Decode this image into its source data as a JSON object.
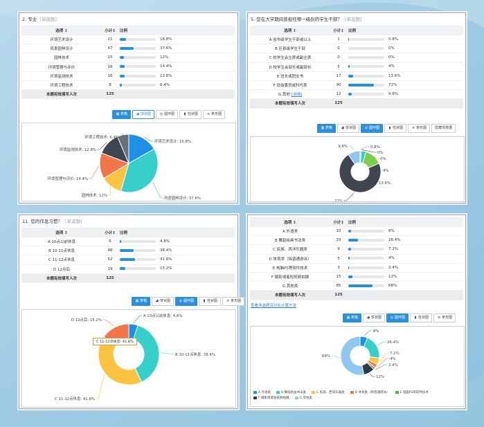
{
  "common": {
    "col_option": "选项 ↕",
    "col_count": "小计↕",
    "col_ratio": "比例",
    "total_label": "本题有效填写人次",
    "btn_table": "表格",
    "btn_pie": "饼状图",
    "btn_ring": "圆环图",
    "btn_column": "柱状图",
    "btn_bar": "条形图",
    "btn_hide": "隐藏零数据",
    "type_tag": "[单选题]"
  },
  "q2": {
    "title": "2. 专业",
    "total": "125",
    "rows": [
      {
        "opt": "环境艺术设计",
        "cnt": "21",
        "pct": "16.8%",
        "v": 16.8
      },
      {
        "opt": "风景园林设计",
        "cnt": "47",
        "pct": "37.6%",
        "v": 37.6
      },
      {
        "opt": "园林技术",
        "cnt": "15",
        "pct": "12%",
        "v": 12
      },
      {
        "opt": "环境管理与评价",
        "cnt": "18",
        "pct": "14.4%",
        "v": 14.4
      },
      {
        "opt": "环境监测技术",
        "cnt": "16",
        "pct": "12.8%",
        "v": 12.8
      },
      {
        "opt": "环境工程技术",
        "cnt": "8",
        "pct": "6.4%",
        "v": 6.4
      }
    ]
  },
  "q5": {
    "title": "5. 您在大学期间曾担任哪一级别的学生干部？",
    "total": "125",
    "g_other_link": "[详细]",
    "rows": [
      {
        "opt": "A 省市级学生干部或以上",
        "cnt": "1",
        "pct": "0.8%",
        "v": 0.8
      },
      {
        "opt": "B 区县级学生干部",
        "cnt": "0",
        "pct": "0%",
        "v": 0
      },
      {
        "opt": "C 校学生会主席或副主席",
        "cnt": "0",
        "pct": "0%",
        "v": 0
      },
      {
        "opt": "D 校学生会部长或副部长",
        "cnt": "5",
        "pct": "4%",
        "v": 4
      },
      {
        "opt": "E 班长或团支书",
        "cnt": "17",
        "pct": "13.6%",
        "v": 13.6
      },
      {
        "opt": "F 班级委员或科代表",
        "cnt": "90",
        "pct": "72%",
        "v": 72
      },
      {
        "opt": "G 其他",
        "cnt": "12",
        "pct": "9.6%",
        "v": 9.6
      }
    ]
  },
  "q11": {
    "title": "11. 您的作息习惯？",
    "total": "125",
    "tooltip": "C 11-12点休息: 41.6%",
    "rows": [
      {
        "opt": "A 10点以前休息",
        "cnt": "6",
        "pct": "4.8%",
        "v": 4.8
      },
      {
        "opt": "B 10-11点休息",
        "cnt": "48",
        "pct": "38.4%",
        "v": 38.4
      },
      {
        "opt": "C 11-12点休息",
        "cnt": "52",
        "pct": "41.6%",
        "v": 41.6
      },
      {
        "opt": "D 12点后",
        "cnt": "19",
        "pct": "15.2%",
        "v": 15.2
      }
    ]
  },
  "q4": {
    "total": "125",
    "link_text": "查看多选题百分比计算方法",
    "rows": [
      {
        "opt": "A 外语类",
        "cnt": "10",
        "pct": "8%",
        "v": 8
      },
      {
        "opt": "B 舞蹈绘画书法类",
        "cnt": "33",
        "pct": "26.4%",
        "v": 26.4
      },
      {
        "opt": "C 民族、西洋乐器类",
        "cnt": "9",
        "pct": "7.2%",
        "v": 7.2
      },
      {
        "opt": "D 体育类（除普通游泳）",
        "cnt": "5",
        "pct": "4%",
        "v": 4
      },
      {
        "opt": "E 电脑PS等软件技术",
        "cnt": "3",
        "pct": "2.4%",
        "v": 2.4
      },
      {
        "opt": "F 摄影或者短视频拍摄",
        "cnt": "15",
        "pct": "12%",
        "v": 12
      },
      {
        "opt": "G 其他类",
        "cnt": "85",
        "pct": "68%",
        "v": 68
      }
    ],
    "legend": [
      "A 外语类",
      "B 舞蹈绘画书法类",
      "C 民族、西洋乐器类",
      "D 体育类（除普通游泳）",
      "E 电脑PS等软件技术",
      "F 摄影或者短视频拍摄",
      "G 其他类"
    ]
  },
  "chart_data": [
    {
      "type": "pie",
      "title": "",
      "categories": [
        "环境艺术设计",
        "风景园林设计",
        "园林技术",
        "环境管理与评价",
        "环境监测技术",
        "环境工程技术"
      ],
      "values": [
        16.8,
        37.6,
        12,
        14.4,
        12.8,
        6.4
      ],
      "labels": [
        "环境艺术设计: 16.8%",
        "风景园林设计: 37.6%",
        "园林技术: 12%",
        "环境管理与评价: 14.4%",
        "环境监测技术: 12.8%",
        "环境工程技术: 6.4%"
      ],
      "colors": [
        "#1e90e6",
        "#36cfc9",
        "#fbc33f",
        "#f4754a",
        "#3f4650",
        "#6b7078"
      ]
    },
    {
      "type": "pie",
      "title": "",
      "categories": [
        "A",
        "B",
        "C",
        "D",
        "E",
        "F",
        "G"
      ],
      "values": [
        0.8,
        0,
        0,
        4,
        13.6,
        72,
        9.6
      ],
      "labels": [
        "0.8%",
        "0%",
        "0%",
        "4%",
        "13.6%",
        "72%",
        "9.6%"
      ],
      "colors": [
        "#f4754a",
        "#3f4650",
        "#fbc33f",
        "#36cfc9",
        "#7ccd4b",
        "#3f4650",
        "#8ec7f0"
      ]
    },
    {
      "type": "pie",
      "title": "",
      "categories": [
        "A 10点以前休息",
        "B 10-11点休息",
        "C 11-12点休息",
        "D 12点后"
      ],
      "values": [
        4.8,
        38.4,
        41.6,
        15.2
      ],
      "labels": [
        "A 10点以前休息: 4.8%",
        "B 10-11点休息: 38.4%",
        "C 11-12点休息: 41.6%",
        "D 12点后: 15.2%"
      ],
      "colors": [
        "#1e90e6",
        "#36cfc9",
        "#fbc33f",
        "#f4754a"
      ]
    },
    {
      "type": "pie",
      "title": "",
      "categories": [
        "A 外语类",
        "B 舞蹈绘画书法类",
        "C 民族、西洋乐器类",
        "D 体育类（除普通游泳）",
        "E 电脑PS等软件技术",
        "F 摄影或者短视频拍摄",
        "G 其他类"
      ],
      "values": [
        8,
        26.4,
        7.2,
        4,
        2.4,
        12,
        68
      ],
      "labels": [
        "8%",
        "26.4%",
        "7.2%",
        "4%",
        "2.4%",
        "12%",
        "68%"
      ],
      "colors": [
        "#1e90e6",
        "#36cfc9",
        "#fbc33f",
        "#f4754a",
        "#4caf50",
        "#2f3b4a",
        "#8ec7f0"
      ]
    }
  ]
}
